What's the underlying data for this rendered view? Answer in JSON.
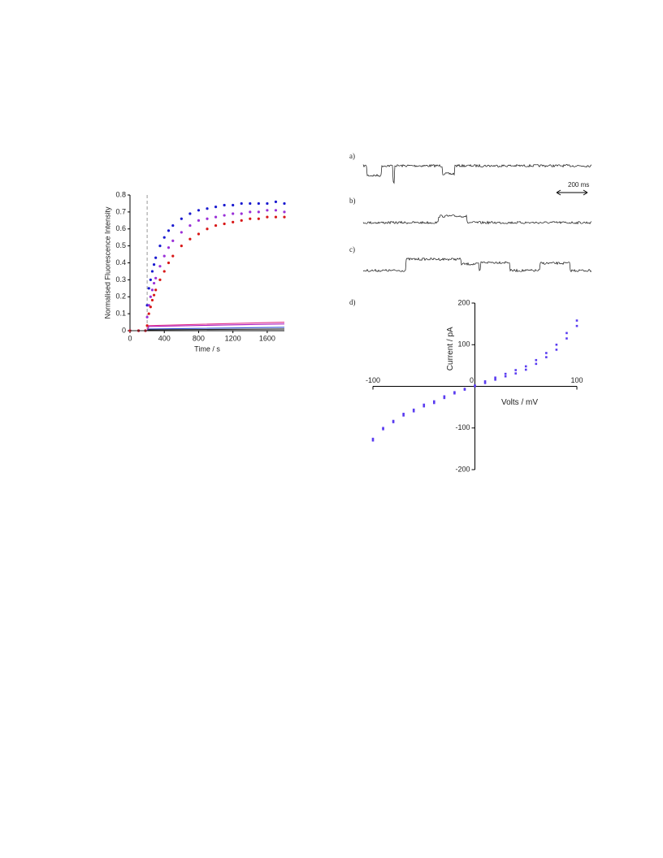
{
  "panels": {
    "labels": [
      "a)",
      "b)",
      "c)"
    ],
    "scale_bar": "200 ms"
  },
  "chart_data": [
    {
      "type": "scatter",
      "xlabel": "Time / s",
      "ylabel": "Normalised Fluorescence Intensity",
      "xlim": [
        0,
        1800
      ],
      "xticks": [
        0,
        400,
        800,
        1200,
        1600
      ],
      "ylim": [
        0,
        0.8
      ],
      "yticks": [
        0,
        0.1,
        0.2,
        0.3,
        0.4,
        0.5,
        0.6,
        0.7,
        0.8
      ],
      "vline": 200,
      "series": [
        {
          "color": "#1a1ad0",
          "style": "markers",
          "x": [
            0,
            100,
            180,
            200,
            220,
            240,
            260,
            280,
            300,
            350,
            400,
            450,
            500,
            600,
            700,
            800,
            900,
            1000,
            1100,
            1200,
            1300,
            1400,
            1500,
            1600,
            1700,
            1800
          ],
          "values": [
            0,
            0,
            0,
            0.15,
            0.25,
            0.3,
            0.35,
            0.39,
            0.43,
            0.5,
            0.55,
            0.59,
            0.62,
            0.66,
            0.69,
            0.71,
            0.72,
            0.73,
            0.74,
            0.74,
            0.75,
            0.75,
            0.75,
            0.75,
            0.76,
            0.75
          ]
        },
        {
          "color": "#9a30d8",
          "style": "markers",
          "x": [
            0,
            100,
            180,
            200,
            220,
            240,
            260,
            280,
            300,
            350,
            400,
            450,
            500,
            600,
            700,
            800,
            900,
            1000,
            1100,
            1200,
            1300,
            1400,
            1500,
            1600,
            1700,
            1800
          ],
          "values": [
            0,
            0,
            0,
            0.08,
            0.15,
            0.2,
            0.24,
            0.28,
            0.31,
            0.38,
            0.44,
            0.49,
            0.53,
            0.58,
            0.62,
            0.65,
            0.66,
            0.67,
            0.68,
            0.69,
            0.69,
            0.7,
            0.7,
            0.71,
            0.71,
            0.7
          ]
        },
        {
          "color": "#d81818",
          "style": "markers",
          "x": [
            0,
            100,
            180,
            200,
            220,
            240,
            260,
            280,
            300,
            350,
            400,
            450,
            500,
            600,
            700,
            800,
            900,
            1000,
            1100,
            1200,
            1300,
            1400,
            1500,
            1600,
            1700,
            1800
          ],
          "values": [
            0,
            0,
            0,
            0.03,
            0.1,
            0.14,
            0.18,
            0.21,
            0.24,
            0.3,
            0.35,
            0.4,
            0.44,
            0.5,
            0.54,
            0.57,
            0.6,
            0.62,
            0.63,
            0.64,
            0.65,
            0.66,
            0.66,
            0.67,
            0.67,
            0.67
          ]
        },
        {
          "color": "#e0308a",
          "style": "line",
          "x": [
            0,
            200,
            220,
            1800
          ],
          "values": [
            0,
            0,
            0.03,
            0.05
          ]
        },
        {
          "color": "#b020c0",
          "style": "line",
          "x": [
            0,
            200,
            220,
            1800
          ],
          "values": [
            0,
            0,
            0.025,
            0.04
          ]
        },
        {
          "color": "#3050d0",
          "style": "line",
          "x": [
            0,
            200,
            220,
            1800
          ],
          "values": [
            0,
            0,
            0.01,
            0.02
          ]
        },
        {
          "color": "#222222",
          "style": "line",
          "x": [
            0,
            200,
            220,
            1800
          ],
          "values": [
            0,
            0,
            0.005,
            0.01
          ]
        }
      ]
    },
    {
      "type": "scatter",
      "panel_label": "d)",
      "xlabel": "Volts / mV",
      "ylabel": "Current / pA",
      "xlim": [
        -100,
        100
      ],
      "xticks": [
        -100,
        0,
        100
      ],
      "ylim": [
        -200,
        200
      ],
      "yticks": [
        -200,
        -100,
        0,
        100,
        200
      ],
      "series": [
        {
          "color": "#5a3cf0",
          "style": "markers",
          "x": [
            -100,
            -90,
            -80,
            -70,
            -60,
            -50,
            -40,
            -30,
            -20,
            -10,
            0,
            10,
            20,
            30,
            40,
            50,
            60,
            70,
            80,
            90,
            100
          ],
          "values": [
            -130,
            -103,
            -86,
            -70,
            -60,
            -48,
            -40,
            -28,
            -17,
            -8,
            0,
            12,
            21,
            30,
            39,
            48,
            63,
            80,
            100,
            128,
            158
          ]
        },
        {
          "color": "#5a3cf0",
          "style": "markers",
          "x": [
            -100,
            -90,
            -80,
            -70,
            -60,
            -50,
            -40,
            -30,
            -20,
            -10,
            0,
            10,
            20,
            30,
            40,
            50,
            60,
            70,
            80,
            90,
            100
          ],
          "values": [
            -126,
            -100,
            -83,
            -66,
            -56,
            -44,
            -36,
            -24,
            -14,
            -6,
            2,
            8,
            16,
            24,
            31,
            40,
            54,
            70,
            88,
            115,
            145
          ]
        }
      ]
    }
  ]
}
